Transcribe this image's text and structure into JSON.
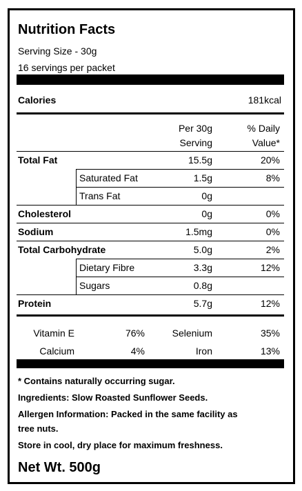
{
  "header": {
    "title": "Nutrition Facts",
    "serving_size": "Serving Size - 30g",
    "servings": "16 servings per packet"
  },
  "calories": {
    "label": "Calories",
    "value": "181kcal"
  },
  "table": {
    "columns": [
      [
        "Per 30g",
        "Serving"
      ],
      [
        "% Daily",
        "Value*"
      ]
    ],
    "rows": [
      {
        "label": "Total Fat",
        "amount": "15.5g",
        "daily": "20%"
      },
      {
        "label": "Saturated Fat",
        "amount": "1.5g",
        "daily": "8%",
        "indent": true
      },
      {
        "label": "Trans Fat",
        "amount": "0g",
        "indent": true
      },
      {
        "label": "Cholesterol",
        "amount": "0g",
        "daily": "0%"
      },
      {
        "label": "Sodium",
        "amount": "1.5mg",
        "daily": "0%"
      },
      {
        "label": "Total Carbohydrate",
        "amount": "5.0g",
        "daily": "2%"
      },
      {
        "label": "Dietary Fibre",
        "amount": "3.3g",
        "daily": "12%",
        "indent": true
      },
      {
        "label": "Sugars",
        "amount": "0.8g",
        "indent": true
      },
      {
        "label": "Protein",
        "amount": "5.7g",
        "daily": "12%"
      }
    ]
  },
  "vitamins": [
    [
      {
        "name": "Vitamin E",
        "value": "76%"
      },
      {
        "name": "Selenium",
        "value": "35%"
      }
    ],
    [
      {
        "name": "Calcium",
        "value": "4%"
      },
      {
        "name": "Iron",
        "value": "13%"
      }
    ]
  ],
  "footnotes": [
    [
      "* Contains naturally occurring sugar."
    ],
    [
      "Ingredients: Slow Roasted Sunflower Seeds."
    ],
    [
      "Allergen Information: Packed in the same facility as",
      "tree nuts."
    ],
    [
      "Store in cool, dry place for maximum freshness."
    ]
  ],
  "net_weight": "Net Wt. 500g"
}
